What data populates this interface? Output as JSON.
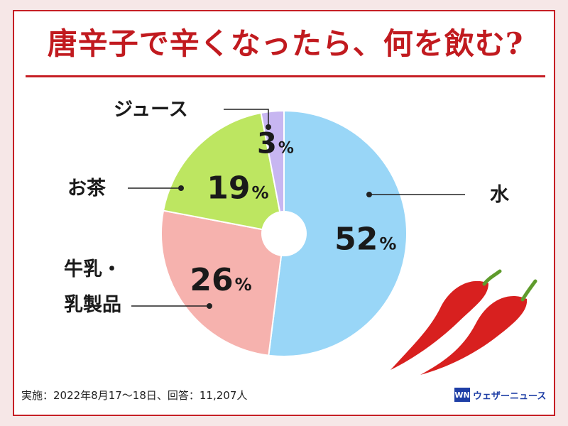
{
  "title": "唐辛子で辛くなったら、何を飲む?",
  "footer": {
    "survey_note": "実施：2022年8月17〜18日、回答：11,207人"
  },
  "brand": {
    "logo_text": "WN",
    "name": "ウェザーニュース"
  },
  "colors": {
    "border": "#c61f25",
    "title": "#c11a1f",
    "water": "#99d6f7",
    "dairy": "#f6b2ae",
    "tea": "#bde661",
    "juice": "#c7b6f1",
    "pepper": "#d8201f",
    "stem": "#5f9b2c"
  },
  "chart_data": {
    "type": "pie",
    "title": "唐辛子で辛くなったら、何を飲む?",
    "unit": "%",
    "slices": [
      {
        "label": "水",
        "value": 52,
        "display": "52",
        "color": "#99d6f7"
      },
      {
        "label": "牛乳・乳製品",
        "label_lines": [
          "牛乳・",
          "乳製品"
        ],
        "value": 26,
        "display": "26",
        "color": "#f6b2ae"
      },
      {
        "label": "お茶",
        "value": 19,
        "display": "19",
        "color": "#bde661"
      },
      {
        "label": "ジュース",
        "value": 3,
        "display": "3",
        "color": "#c7b6f1"
      }
    ]
  }
}
